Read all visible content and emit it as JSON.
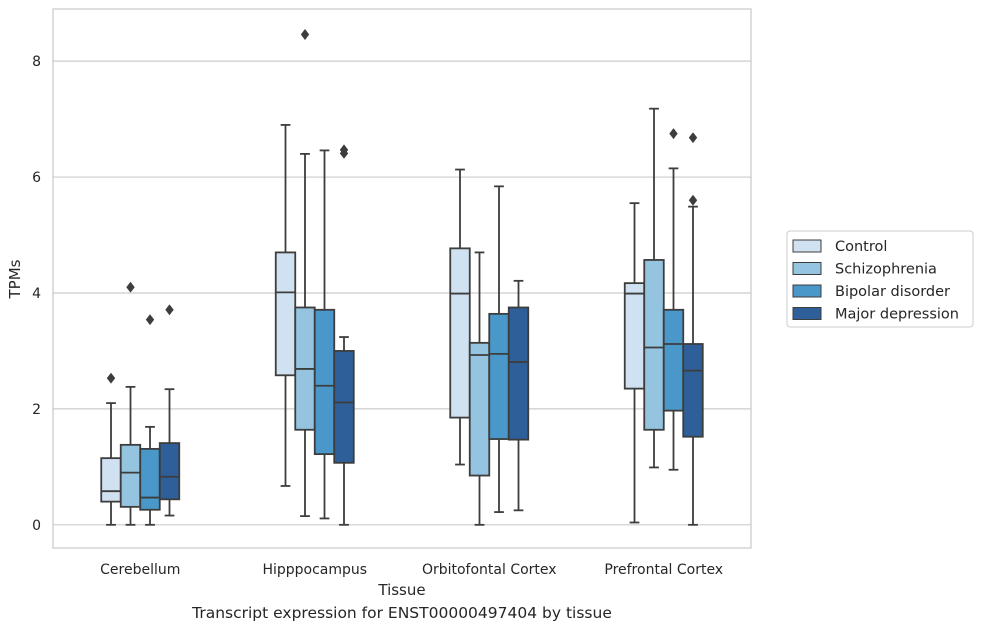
{
  "caption": "Transcript expression for ENST00000497404 by tissue",
  "chart_data": {
    "type": "box",
    "xlabel": "Tissue",
    "ylabel": "TPMs",
    "ylim": [
      -0.4,
      8.9
    ],
    "yticks": [
      0,
      2,
      4,
      6,
      8
    ],
    "grid": "horizontal",
    "legend_position": "right",
    "categories": [
      "Cerebellum",
      "Hipppocampus",
      "Orbitofontal Cortex",
      "Prefrontal Cortex"
    ],
    "series": [
      {
        "name": "Control",
        "color": "#d0e1f2",
        "boxes": [
          {
            "whisker_low": 0.0,
            "q1": 0.4,
            "median": 0.58,
            "q3": 1.15,
            "whisker_high": 2.1,
            "outliers": [
              2.53
            ]
          },
          {
            "whisker_low": 0.67,
            "q1": 2.58,
            "median": 4.01,
            "q3": 4.7,
            "whisker_high": 6.9,
            "outliers": []
          },
          {
            "whisker_low": 1.04,
            "q1": 1.85,
            "median": 3.99,
            "q3": 4.77,
            "whisker_high": 6.13,
            "outliers": []
          },
          {
            "whisker_low": 0.04,
            "q1": 2.35,
            "median": 3.99,
            "q3": 4.17,
            "whisker_high": 5.55,
            "outliers": []
          }
        ]
      },
      {
        "name": "Schizophrenia",
        "color": "#94c4df",
        "boxes": [
          {
            "whisker_low": 0.0,
            "q1": 0.31,
            "median": 0.9,
            "q3": 1.38,
            "whisker_high": 2.38,
            "outliers": [
              4.1
            ]
          },
          {
            "whisker_low": 0.15,
            "q1": 1.64,
            "median": 2.69,
            "q3": 3.75,
            "whisker_high": 6.4,
            "outliers": [
              8.46
            ]
          },
          {
            "whisker_low": 0.0,
            "q1": 0.85,
            "median": 2.93,
            "q3": 3.14,
            "whisker_high": 4.7,
            "outliers": []
          },
          {
            "whisker_low": 0.99,
            "q1": 1.64,
            "median": 3.06,
            "q3": 4.57,
            "whisker_high": 7.18,
            "outliers": []
          }
        ]
      },
      {
        "name": "Bipolar disorder",
        "color": "#4a98c9",
        "boxes": [
          {
            "whisker_low": 0.0,
            "q1": 0.26,
            "median": 0.47,
            "q3": 1.31,
            "whisker_high": 1.69,
            "outliers": [
              3.54
            ]
          },
          {
            "whisker_low": 0.11,
            "q1": 1.22,
            "median": 2.4,
            "q3": 3.71,
            "whisker_high": 6.46,
            "outliers": []
          },
          {
            "whisker_low": 0.22,
            "q1": 1.48,
            "median": 2.95,
            "q3": 3.64,
            "whisker_high": 5.84,
            "outliers": []
          },
          {
            "whisker_low": 0.95,
            "q1": 1.97,
            "median": 3.12,
            "q3": 3.71,
            "whisker_high": 6.15,
            "outliers": [
              6.75
            ]
          }
        ]
      },
      {
        "name": "Major depression",
        "color": "#2e5f98",
        "boxes": [
          {
            "whisker_low": 0.16,
            "q1": 0.44,
            "median": 0.83,
            "q3": 1.41,
            "whisker_high": 2.34,
            "outliers": [
              3.71
            ]
          },
          {
            "whisker_low": 0.0,
            "q1": 1.07,
            "median": 2.11,
            "q3": 3.0,
            "whisker_high": 3.24,
            "outliers": [
              6.41,
              6.47
            ]
          },
          {
            "whisker_low": 0.25,
            "q1": 1.47,
            "median": 2.81,
            "q3": 3.75,
            "whisker_high": 4.21,
            "outliers": []
          },
          {
            "whisker_low": 0.0,
            "q1": 1.52,
            "median": 2.66,
            "q3": 3.12,
            "whisker_high": 5.49,
            "outliers": [
              5.6,
              6.68
            ]
          }
        ]
      }
    ]
  }
}
